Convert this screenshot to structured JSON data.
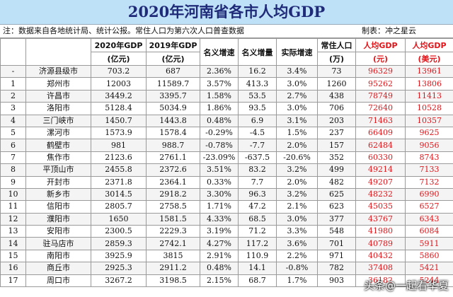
{
  "title": "2020年河南省各市人均GDP",
  "note": "注：数据来自各地统计局、统计公报。常住人口为第六次人口普查数据",
  "maker": "制表：冲之星云",
  "headers": [
    {
      "l1": "",
      "l2": ""
    },
    {
      "l1": "",
      "l2": ""
    },
    {
      "l1": "2020年GDP",
      "l2": "(亿元)"
    },
    {
      "l1": "2019年GDP",
      "l2": "(亿元)"
    },
    {
      "l1": "名义增速",
      "l2": ""
    },
    {
      "l1": "名义增量",
      "l2": ""
    },
    {
      "l1": "实际增速",
      "l2": ""
    },
    {
      "l1": "常住人口",
      "l2": "(万)"
    },
    {
      "l1": "人均GDP",
      "l2": "(元)"
    },
    {
      "l1": "人均GDP",
      "l2": "(美元)"
    }
  ],
  "rows": [
    [
      "-",
      "济源县级市",
      "703.2",
      "687",
      "2.36%",
      "16.2",
      "3.4%",
      "73",
      "96329",
      "13961"
    ],
    [
      "1",
      "郑州市",
      "12003",
      "11589.7",
      "3.57%",
      "413.3",
      "3.0%",
      "1260",
      "95262",
      "13806"
    ],
    [
      "2",
      "许昌市",
      "3449.2",
      "3395.7",
      "1.58%",
      "53.5",
      "2.7%",
      "438",
      "78749",
      "11413"
    ],
    [
      "3",
      "洛阳市",
      "5128.4",
      "5034.9",
      "1.86%",
      "93.5",
      "3.0%",
      "706",
      "72640",
      "10528"
    ],
    [
      "4",
      "三门峡市",
      "1450.7",
      "1443.8",
      "0.48%",
      "6.9",
      "3.1%",
      "203",
      "71463",
      "10357"
    ],
    [
      "5",
      "漯河市",
      "1573.9",
      "1578.4",
      "-0.29%",
      "-4.5",
      "1.5%",
      "237",
      "66409",
      "9625"
    ],
    [
      "6",
      "鹤壁市",
      "981",
      "988.7",
      "-0.78%",
      "-7.7",
      "2.0%",
      "157",
      "62484",
      "9056"
    ],
    [
      "7",
      "焦作市",
      "2123.6",
      "2761.1",
      "-23.09%",
      "-637.5",
      "-20.6%",
      "352",
      "60330",
      "8743"
    ],
    [
      "8",
      "平顶山市",
      "2455.8",
      "2372.6",
      "3.51%",
      "83.2",
      "3.2%",
      "499",
      "49214",
      "7133"
    ],
    [
      "9",
      "开封市",
      "2371.8",
      "2364.1",
      "0.33%",
      "7.7",
      "2.0%",
      "482",
      "49207",
      "7132"
    ],
    [
      "10",
      "新乡市",
      "3014.5",
      "2918.2",
      "3.30%",
      "96.3",
      "3.2%",
      "625",
      "48232",
      "6990"
    ],
    [
      "11",
      "信阳市",
      "2805.7",
      "2758.5",
      "1.71%",
      "47.2",
      "2.1%",
      "623",
      "45035",
      "6527"
    ],
    [
      "12",
      "濮阳市",
      "1650",
      "1581.5",
      "4.33%",
      "68.5",
      "3.0%",
      "377",
      "43767",
      "6343"
    ],
    [
      "13",
      "安阳市",
      "2300.5",
      "2229.3",
      "3.19%",
      "71.2",
      "3.3%",
      "548",
      "41980",
      "6084"
    ],
    [
      "14",
      "驻马店市",
      "2859.3",
      "2742.1",
      "4.27%",
      "117.2",
      "3.6%",
      "701",
      "40789",
      "5911"
    ],
    [
      "15",
      "南阳市",
      "3925.9",
      "3815",
      "2.91%",
      "110.9",
      "2.2%",
      "971",
      "40432",
      "5860"
    ],
    [
      "16",
      "商丘市",
      "2925.3",
      "2911.2",
      "0.48%",
      "14.1",
      "-0.8%",
      "782",
      "37408",
      "5421"
    ],
    [
      "17",
      "周口市",
      "3267.2",
      "3198.5",
      "2.15%",
      "68.7",
      "1.7%",
      "903",
      "36182",
      "5244"
    ]
  ],
  "watermark": "头条@一起看华夏",
  "colors": {
    "title_bg": "#bfe1f7",
    "title_text": "#1f2a78",
    "highlight": "#e0161b"
  }
}
